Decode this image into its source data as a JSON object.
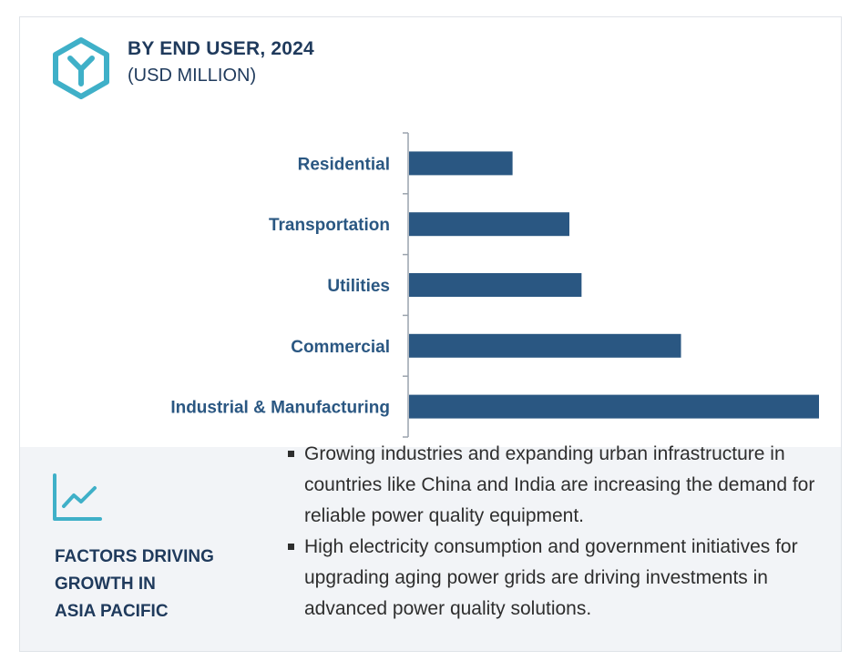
{
  "header": {
    "title": "BY END USER, 2024",
    "subtitle": "(USD MILLION)",
    "logo_icon": "hexagon-y-logo-icon"
  },
  "colors": {
    "bar": "#2a5782",
    "axis": "#9aa3ad",
    "label": "#2a5782",
    "accent": "#3fb0c8",
    "title": "#1f3a5c",
    "panel": "#f2f4f7"
  },
  "chart_data": {
    "type": "bar",
    "orientation": "horizontal",
    "title": "BY END USER, 2024",
    "subtitle": "(USD MILLION)",
    "categories": [
      "Residential",
      "Transportation",
      "Utilities",
      "Commercial",
      "Industrial & Manufacturing"
    ],
    "values": [
      255,
      395,
      425,
      670,
      1010
    ],
    "xlim": [
      0,
      1010
    ],
    "xlabel": "",
    "ylabel": "",
    "grid": false,
    "legend": "none"
  },
  "factors": {
    "icon": "trend-line-icon",
    "heading_lines": [
      "FACTORS DRIVING",
      "GROWTH IN",
      "ASIA PACIFIC"
    ],
    "bullets": [
      "Growing industries and expanding urban infrastructure in countries like China and India are increasing the demand for reliable power quality equipment.",
      "High electricity consumption and government initiatives for upgrading aging power grids are driving investments in advanced power quality solutions."
    ]
  }
}
